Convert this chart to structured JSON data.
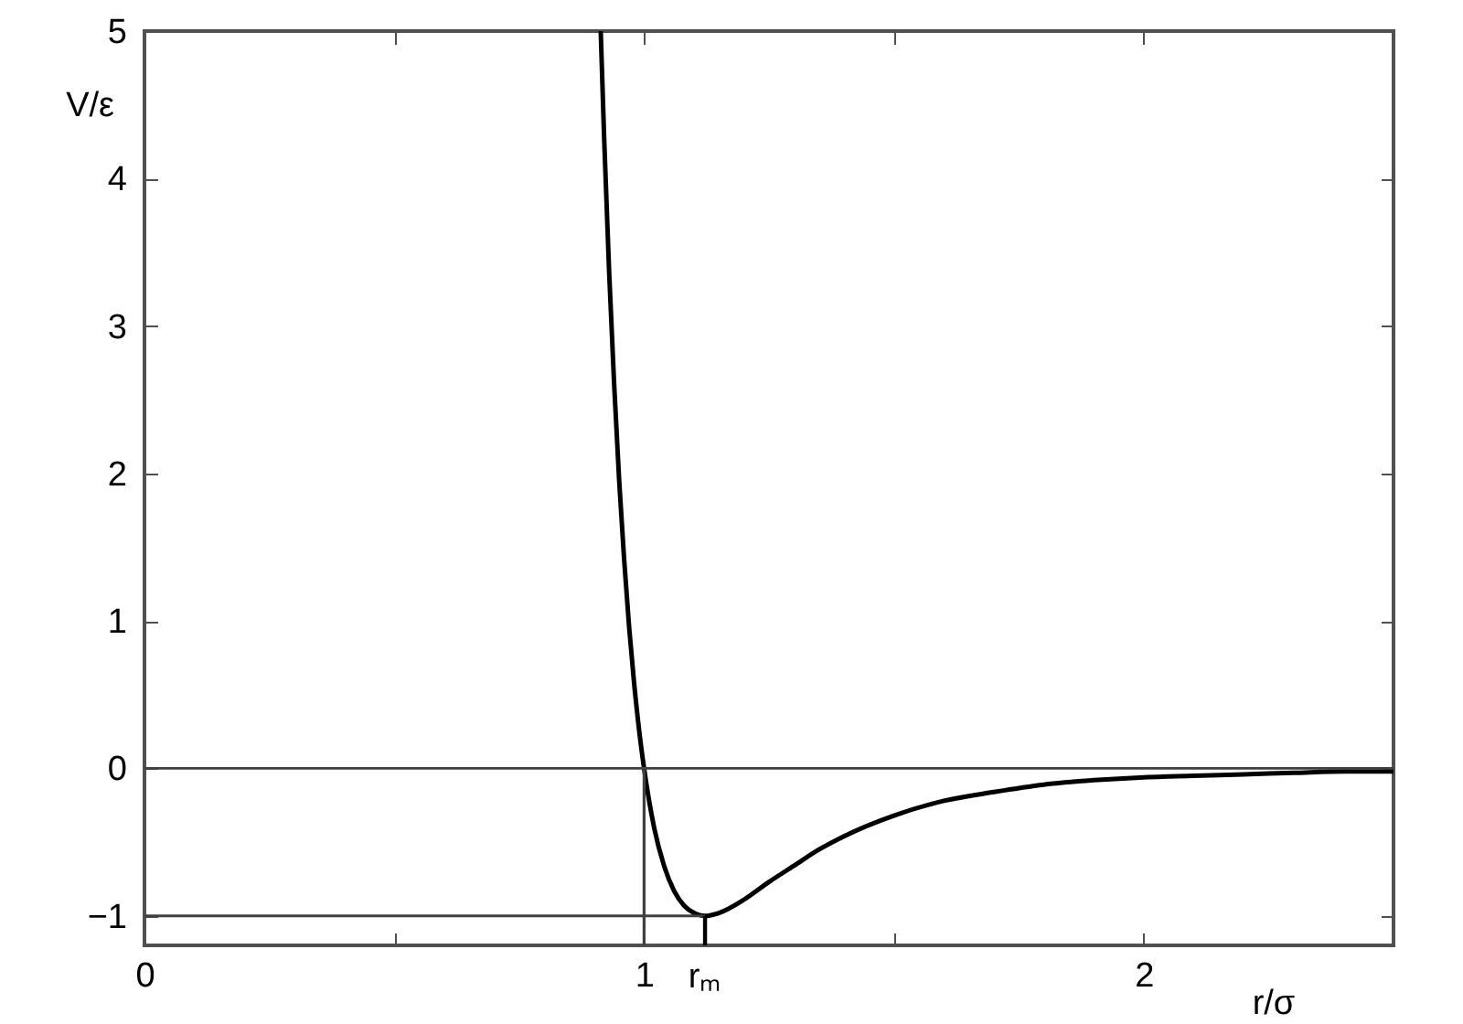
{
  "chart_data": {
    "type": "line",
    "xlabel": "r/σ",
    "ylabel": "V/ε",
    "x": [
      0.9133,
      0.92,
      0.93,
      0.94,
      0.95,
      0.96,
      0.97,
      0.98,
      0.99,
      1.0,
      1.02,
      1.04,
      1.06,
      1.08,
      1.1,
      1.122,
      1.15,
      1.2,
      1.25,
      1.3,
      1.35,
      1.4,
      1.5,
      1.6,
      1.7,
      1.8,
      1.9,
      2.0,
      2.1,
      2.2,
      2.3,
      2.4,
      2.5
    ],
    "series": [
      {
        "color": "#000000",
        "values": [
          4.99,
          4.28,
          3.37,
          2.61,
          1.96,
          1.42,
          0.96,
          0.58,
          0.26,
          0,
          -0.4,
          -0.66,
          -0.83,
          -0.93,
          -0.98,
          -1.0,
          -0.98,
          -0.89,
          -0.77,
          -0.66,
          -0.55,
          -0.46,
          -0.32,
          -0.22,
          -0.16,
          -0.11,
          -0.08,
          -0.06,
          -0.05,
          -0.04,
          -0.03,
          -0.02,
          -0.02
        ]
      }
    ],
    "xlim": [
      0,
      2.5
    ],
    "ylim": [
      -1.2,
      5
    ],
    "xticks": [
      0,
      {
        "value": 0.5,
        "label": null
      },
      1,
      {
        "value": 1.5,
        "label": null
      },
      2
    ],
    "yticks": [
      -1,
      0,
      1,
      2,
      3,
      4,
      5
    ],
    "ref_lines": [
      {
        "axis": "y",
        "value": 0,
        "color": "#404040"
      },
      {
        "axis": "y",
        "value": -1,
        "color": "#404040"
      },
      {
        "axis": "x",
        "value": 1,
        "color": "#404040"
      }
    ],
    "annotations": [
      {
        "text": "rₘ",
        "x": 1.122,
        "y": -1.0
      }
    ],
    "grid": false,
    "marker": "none",
    "line_style": "solid"
  }
}
